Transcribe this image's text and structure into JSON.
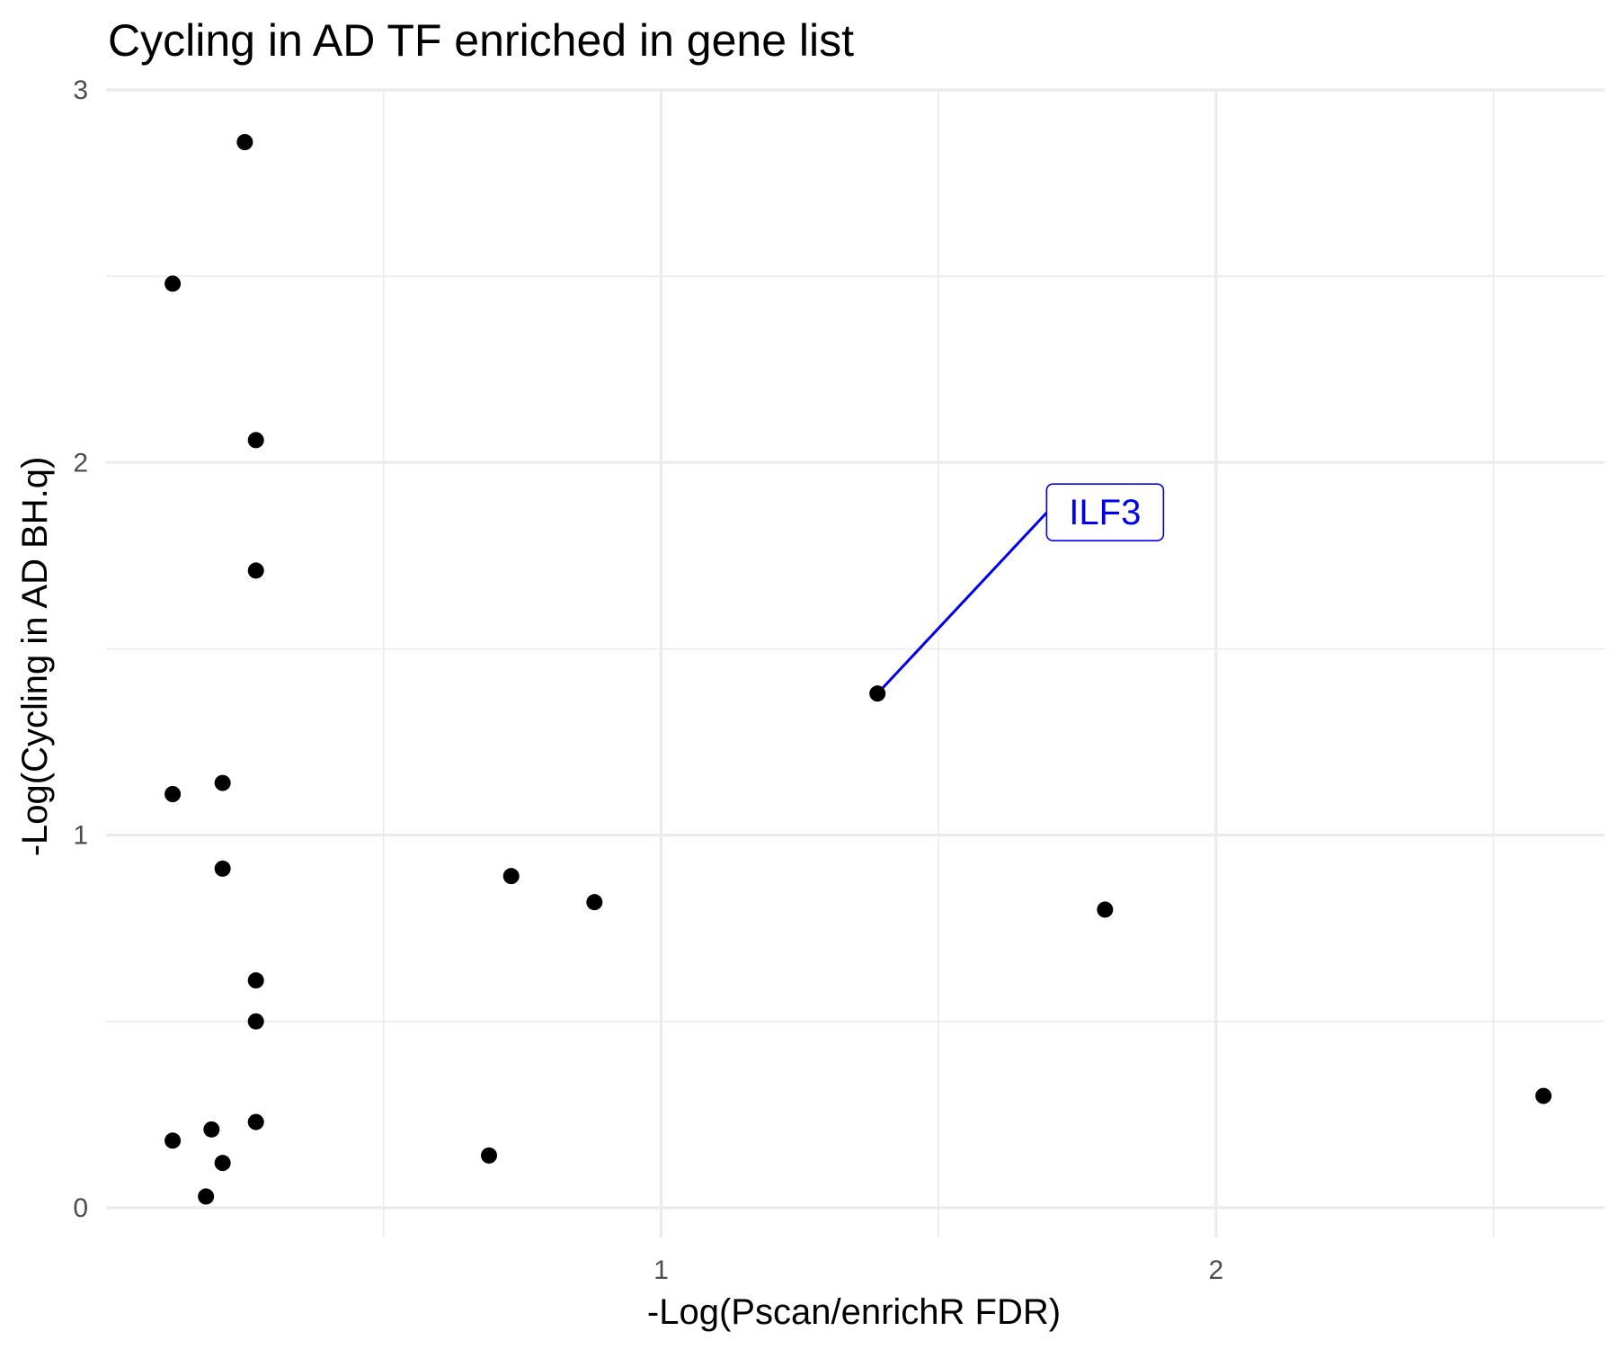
{
  "chart_data": {
    "type": "scatter",
    "title": "Cycling in AD TF enriched in gene list",
    "xlabel": "-Log(Pscan/enrichR FDR)",
    "ylabel": "-Log(Cycling in AD BH.q)",
    "xlim": [
      0.0,
      2.7
    ],
    "ylim": [
      -0.08,
      3.0
    ],
    "x_major_ticks": [
      1,
      2
    ],
    "x_minor_ticks": [
      0.5,
      1.5,
      2.5
    ],
    "y_major_ticks": [
      0,
      1,
      2,
      3
    ],
    "y_minor_ticks": [
      0.5,
      1.5,
      2.5
    ],
    "x_tick_labels": [
      "1",
      "2"
    ],
    "y_tick_labels": [
      "0",
      "1",
      "2",
      "3"
    ],
    "grid": true,
    "point_color": "#000000",
    "grid_color": "#ebebeb",
    "series": [
      {
        "points": [
          {
            "x": 0.25,
            "y": 2.86
          },
          {
            "x": 0.12,
            "y": 2.48
          },
          {
            "x": 0.27,
            "y": 2.06
          },
          {
            "x": 0.27,
            "y": 1.71
          },
          {
            "x": 1.39,
            "y": 1.38
          },
          {
            "x": 0.12,
            "y": 1.11
          },
          {
            "x": 0.21,
            "y": 1.14
          },
          {
            "x": 0.21,
            "y": 0.91
          },
          {
            "x": 0.73,
            "y": 0.89
          },
          {
            "x": 0.88,
            "y": 0.82
          },
          {
            "x": 1.8,
            "y": 0.8
          },
          {
            "x": 0.27,
            "y": 0.61
          },
          {
            "x": 0.27,
            "y": 0.5
          },
          {
            "x": 2.59,
            "y": 0.3
          },
          {
            "x": 0.12,
            "y": 0.18
          },
          {
            "x": 0.19,
            "y": 0.21
          },
          {
            "x": 0.27,
            "y": 0.23
          },
          {
            "x": 0.21,
            "y": 0.12
          },
          {
            "x": 0.69,
            "y": 0.14
          },
          {
            "x": 0.18,
            "y": 0.03
          }
        ]
      }
    ],
    "annotations": [
      {
        "text": "ILF3",
        "x": 1.39,
        "y": 1.38,
        "label_x": 1.8,
        "label_y": 1.87,
        "color": "#0000ee"
      }
    ]
  }
}
